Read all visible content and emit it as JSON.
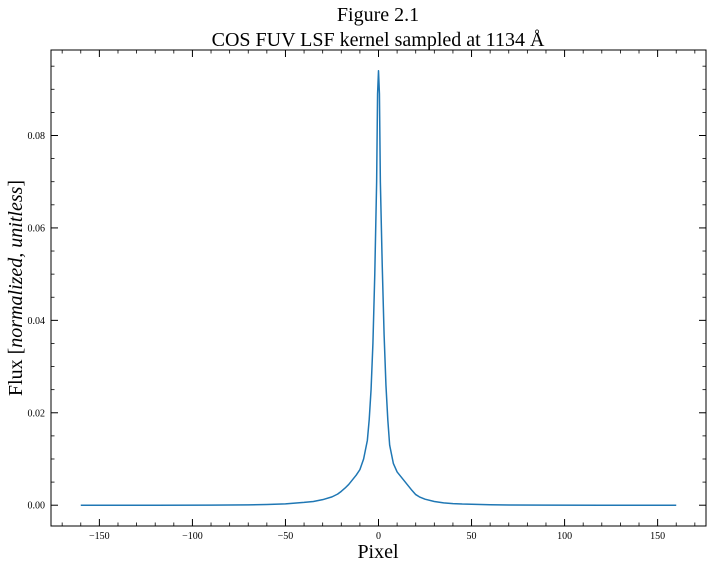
{
  "chart_data": {
    "type": "line",
    "title": "Figure 2.1",
    "subtitle": "COS FUV LSF kernel sampled at 1134 Å",
    "xlabel": "Pixel",
    "ylabel": {
      "prefix": "Flux [",
      "italic": "normalized, unitless",
      "suffix": "]"
    },
    "xlim": [
      -176,
      176
    ],
    "ylim": [
      -0.0045,
      0.0985
    ],
    "xticks": [
      -150,
      -100,
      -50,
      0,
      50,
      100,
      150
    ],
    "xtick_labels": [
      "−150",
      "−100",
      "−50",
      "0",
      "50",
      "100",
      "150"
    ],
    "yticks": [
      0.0,
      0.02,
      0.04,
      0.06,
      0.08
    ],
    "ytick_labels": [
      "0.00",
      "0.02",
      "0.04",
      "0.06",
      "0.08"
    ],
    "grid": false,
    "series": [
      {
        "color": "#1f77b4",
        "x": [
          -160,
          -120,
          -90,
          -70,
          -60,
          -50,
          -45,
          -40,
          -35,
          -30,
          -25,
          -22,
          -20,
          -18,
          -16,
          -14,
          -12,
          -10,
          -8,
          -6,
          -5,
          -4,
          -3,
          -2,
          -1,
          -0.5,
          0,
          0.5,
          1,
          2,
          3,
          4,
          5,
          6,
          8,
          10,
          12,
          14,
          16,
          18,
          20,
          22,
          25,
          30,
          35,
          40,
          45,
          50,
          60,
          70,
          90,
          120,
          160
        ],
        "y": [
          0.0,
          0.0,
          3e-05,
          8e-05,
          0.00015,
          0.0003,
          0.00045,
          0.0006,
          0.0008,
          0.0012,
          0.0018,
          0.0024,
          0.003,
          0.0037,
          0.0045,
          0.0055,
          0.0065,
          0.0077,
          0.01,
          0.014,
          0.0185,
          0.025,
          0.035,
          0.05,
          0.07,
          0.089,
          0.094,
          0.089,
          0.07,
          0.052,
          0.037,
          0.026,
          0.0185,
          0.013,
          0.009,
          0.0072,
          0.0062,
          0.0052,
          0.0042,
          0.0032,
          0.0023,
          0.0018,
          0.0013,
          0.0008,
          0.0005,
          0.00035,
          0.00025,
          0.0002,
          0.0001,
          5e-05,
          2e-05,
          0.0,
          0.0
        ]
      }
    ]
  }
}
